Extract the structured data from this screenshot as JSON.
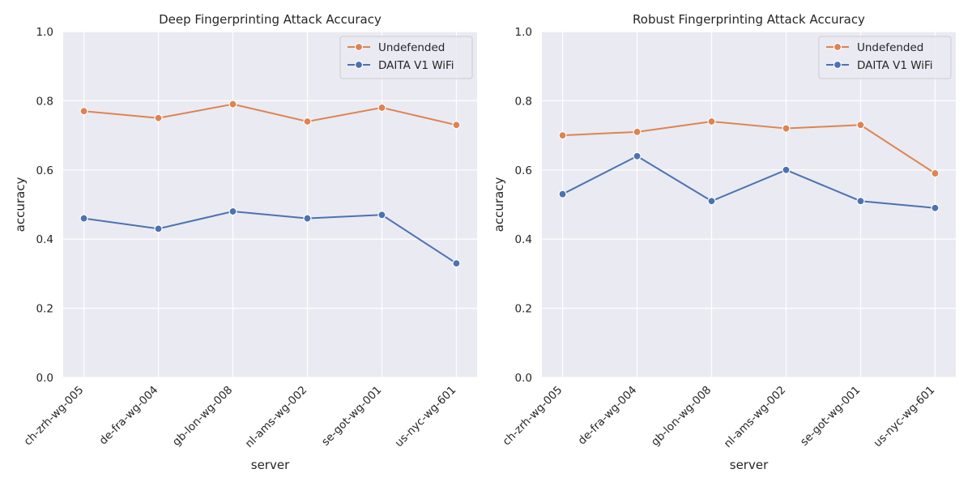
{
  "chart_data": [
    {
      "type": "line",
      "title": "Deep Fingerprinting Attack Accuracy",
      "xlabel": "server",
      "ylabel": "accuracy",
      "ylim": [
        0,
        1
      ],
      "yticks": [
        "0.0",
        "0.2",
        "0.4",
        "0.6",
        "0.8",
        "1.0"
      ],
      "grid": true,
      "legend_position": "top-right",
      "categories": [
        "ch-zrh-wg-005",
        "de-fra-wg-004",
        "gb-lon-wg-008",
        "nl-ams-wg-002",
        "se-got-wg-001",
        "us-nyc-wg-601"
      ],
      "series": [
        {
          "name": "Undefended",
          "color": "#dd8452",
          "values": [
            0.77,
            0.75,
            0.79,
            0.74,
            0.78,
            0.73
          ]
        },
        {
          "name": "DAITA V1 WiFi",
          "color": "#4c72b0",
          "values": [
            0.46,
            0.43,
            0.48,
            0.46,
            0.47,
            0.33
          ]
        }
      ]
    },
    {
      "type": "line",
      "title": "Robust Fingerprinting Attack Accuracy",
      "xlabel": "server",
      "ylabel": "accuracy",
      "ylim": [
        0,
        1
      ],
      "yticks": [
        "0.0",
        "0.2",
        "0.4",
        "0.6",
        "0.8",
        "1.0"
      ],
      "grid": true,
      "legend_position": "top-right",
      "categories": [
        "ch-zrh-wg-005",
        "de-fra-wg-004",
        "gb-lon-wg-008",
        "nl-ams-wg-002",
        "se-got-wg-001",
        "us-nyc-wg-601"
      ],
      "series": [
        {
          "name": "Undefended",
          "color": "#dd8452",
          "values": [
            0.7,
            0.71,
            0.74,
            0.72,
            0.73,
            0.59
          ]
        },
        {
          "name": "DAITA V1 WiFi",
          "color": "#4c72b0",
          "values": [
            0.53,
            0.64,
            0.51,
            0.6,
            0.51,
            0.49
          ]
        }
      ]
    }
  ],
  "style": {
    "plot_background": "#eaeaf2",
    "grid_color": "#ffffff",
    "text_color": "#262626"
  }
}
